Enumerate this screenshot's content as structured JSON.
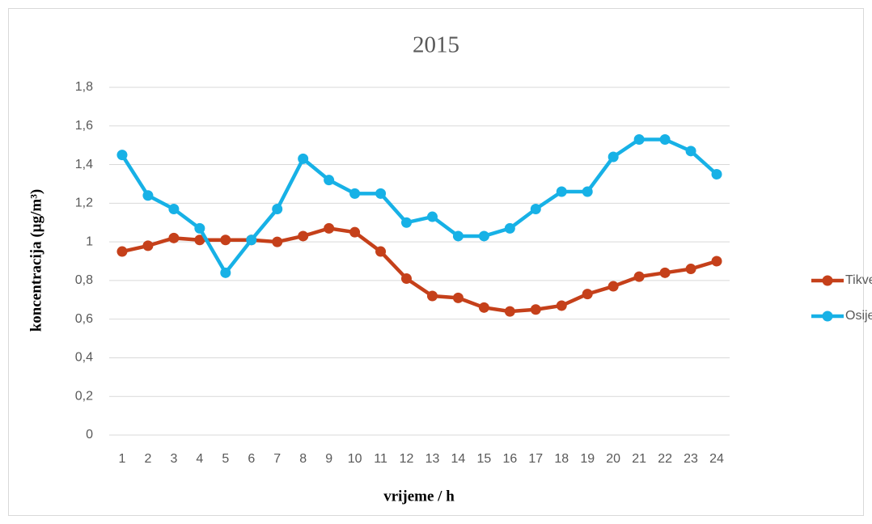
{
  "chart_data": {
    "type": "line",
    "title": "2015",
    "x_label": "vrijeme / h",
    "y_label": "koncentracija  (µg/m³)",
    "categories": [
      "1",
      "2",
      "3",
      "4",
      "5",
      "6",
      "7",
      "8",
      "9",
      "10",
      "11",
      "12",
      "13",
      "14",
      "15",
      "16",
      "17",
      "18",
      "19",
      "20",
      "21",
      "22",
      "23",
      "24"
    ],
    "series": [
      {
        "name": "Tikveš",
        "color": "#c5401a",
        "values": [
          0.95,
          0.98,
          1.02,
          1.01,
          1.01,
          1.01,
          1.0,
          1.03,
          1.07,
          1.05,
          0.95,
          0.81,
          0.72,
          0.71,
          0.66,
          0.64,
          0.65,
          0.67,
          0.73,
          0.77,
          0.82,
          0.84,
          0.86,
          0.9
        ]
      },
      {
        "name": "Osijek",
        "color": "#17b1e6",
        "values": [
          1.45,
          1.24,
          1.17,
          1.07,
          0.84,
          1.01,
          1.17,
          1.43,
          1.32,
          1.25,
          1.25,
          1.1,
          1.13,
          1.03,
          1.03,
          1.07,
          1.17,
          1.26,
          1.26,
          1.44,
          1.53,
          1.53,
          1.47,
          1.35
        ]
      }
    ],
    "ylim": [
      0,
      1.8
    ],
    "yticks": [
      0,
      {
        "value": 0.2,
        "label": "0,2"
      },
      {
        "value": 0.4,
        "label": "0,4"
      },
      {
        "value": 0.6,
        "label": "0,6"
      },
      {
        "value": 0.8,
        "label": "0,8"
      },
      1,
      {
        "value": 1.2,
        "label": "1,2"
      },
      {
        "value": 1.4,
        "label": "1,4"
      },
      {
        "value": 1.6,
        "label": "1,6"
      },
      {
        "value": 1.8,
        "label": "1,8"
      }
    ],
    "grid": true,
    "legend": "right"
  }
}
